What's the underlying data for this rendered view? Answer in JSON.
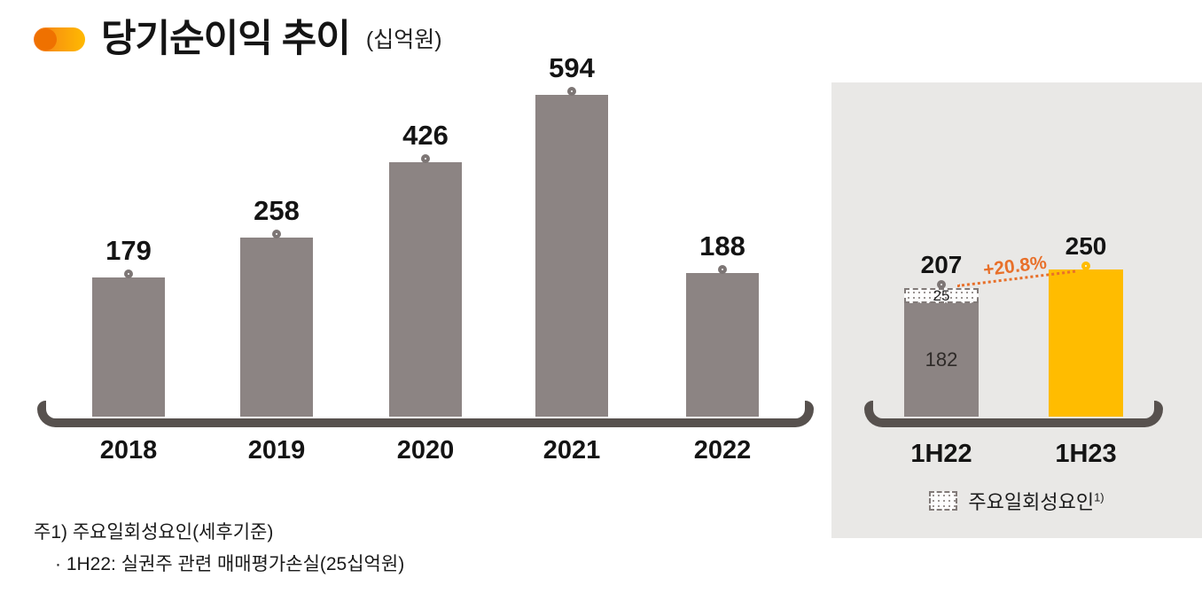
{
  "header": {
    "title": "당기순이익 추이",
    "unit": "(십억원)"
  },
  "chart_data": [
    {
      "type": "bar",
      "title": "당기순이익 추이",
      "unit": "십억원",
      "categories": [
        "2018",
        "2019",
        "2020",
        "2021",
        "2022"
      ],
      "values": [
        179,
        258,
        426,
        594,
        188
      ],
      "ylim": [
        0,
        650
      ],
      "grid": false,
      "bar_color": "#8c8483",
      "marker": "white-circle-on-bar-top"
    },
    {
      "type": "bar",
      "categories": [
        "1H22",
        "1H23"
      ],
      "totals": [
        207,
        250
      ],
      "stack": {
        "one_off_label": "주요일회성요인",
        "one_off_sup": "1)",
        "one_off_values": [
          25,
          null
        ],
        "base_values": [
          182,
          250
        ]
      },
      "growth_annotation": "+20.8%",
      "bar_colors": [
        "#8c8483",
        "#ffbc00"
      ],
      "ylim": [
        0,
        300
      ],
      "grid": false,
      "legend_position": "bottom"
    }
  ],
  "footnotes": {
    "line1": "주1) 주요일회성요인(세후기준)",
    "line2": "· 1H22: 실권주 관련 매매평가손실(25십억원)"
  },
  "colors": {
    "bar_gray": "#8c8483",
    "bar_yellow": "#ffbc00",
    "axis": "#57514e",
    "accent_orange": "#e8702a",
    "panel_background": "#e9e8e6",
    "title_pill_orange": "#f4731c",
    "title_pill_amber": "#ffb901"
  }
}
